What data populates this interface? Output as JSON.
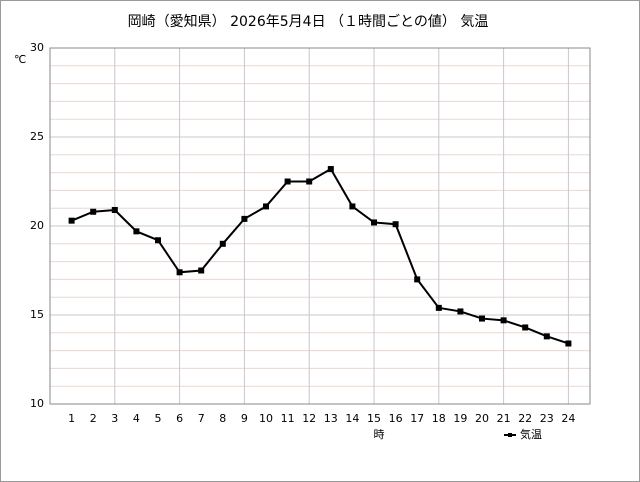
{
  "chart_data": {
    "type": "line",
    "title": "岡崎（愛知県） 2026年5月4日 （１時間ごとの値） 気温",
    "y_label": "℃",
    "x_label": "時",
    "x": [
      1,
      2,
      3,
      4,
      5,
      6,
      7,
      8,
      9,
      10,
      11,
      12,
      13,
      14,
      15,
      16,
      17,
      18,
      19,
      20,
      21,
      22,
      23,
      24
    ],
    "series": [
      {
        "name": "気温",
        "color": "#000000",
        "values": [
          20.3,
          20.8,
          20.9,
          19.7,
          19.2,
          17.4,
          17.5,
          19.0,
          20.4,
          21.1,
          22.5,
          22.5,
          23.2,
          21.1,
          20.2,
          20.1,
          17.0,
          15.4,
          15.2,
          14.8,
          14.7,
          14.3,
          13.8,
          13.4
        ]
      }
    ],
    "xlim": [
      0,
      25
    ],
    "ylim": [
      10,
      30
    ],
    "xticks": [
      1,
      2,
      3,
      4,
      5,
      6,
      7,
      8,
      9,
      10,
      11,
      12,
      13,
      14,
      15,
      16,
      17,
      18,
      19,
      20,
      21,
      22,
      23,
      24
    ],
    "yticks": [
      10,
      15,
      20,
      25,
      30
    ],
    "xgrid_ticks": [
      3,
      6,
      9,
      12,
      15,
      18,
      21,
      24
    ],
    "yminor_ticks": [
      11,
      12,
      13,
      14,
      16,
      17,
      18,
      19,
      21,
      22,
      23,
      24,
      26,
      27,
      28,
      29
    ],
    "grid": true,
    "legend": "bottom-right"
  }
}
